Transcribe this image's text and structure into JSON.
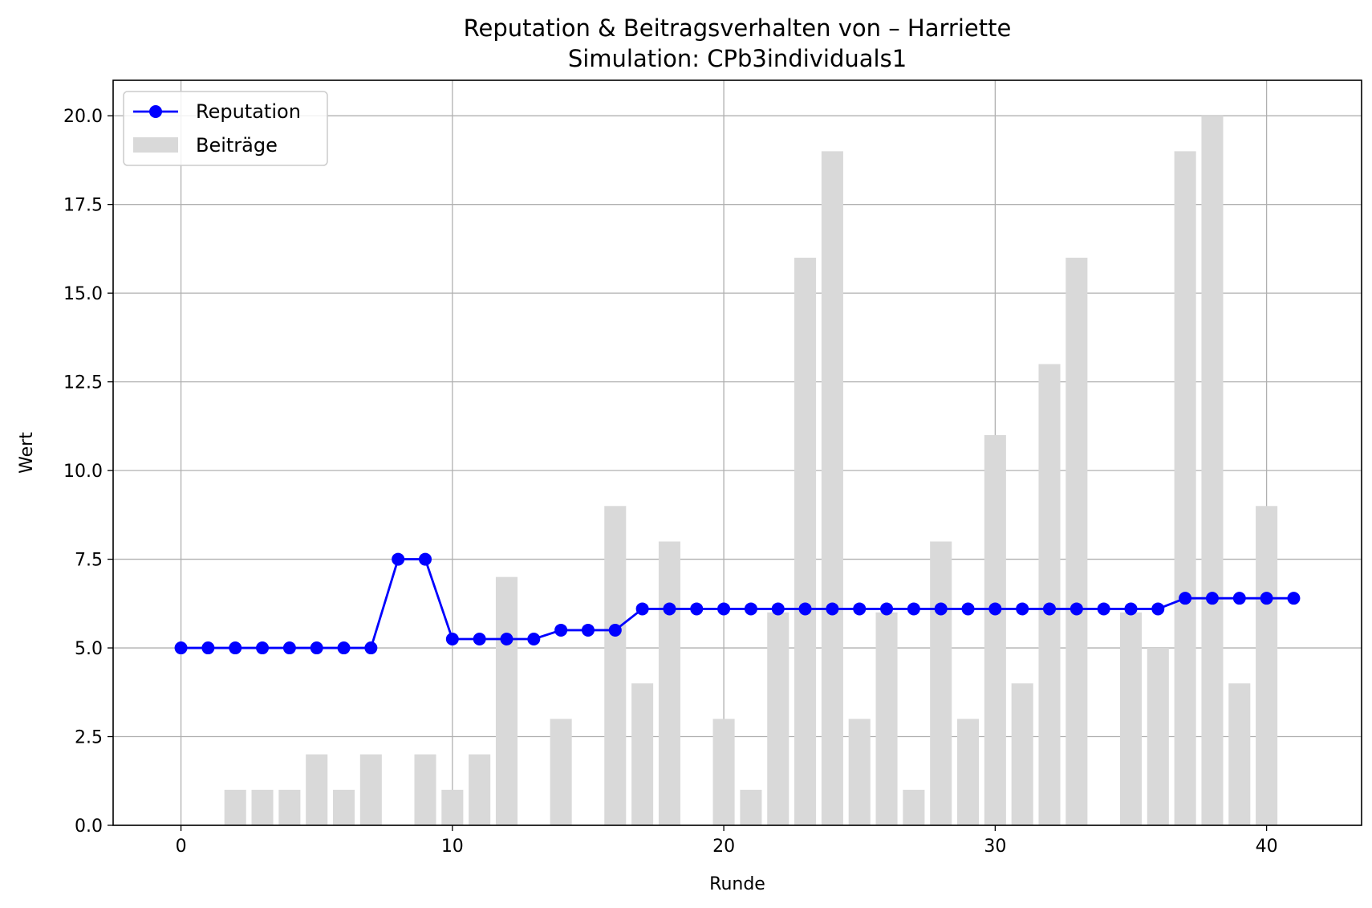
{
  "chart_data": {
    "type": "bar+line",
    "title": "Reputation & Beitragsverhalten von – Harriette",
    "subtitle": "Simulation: CPb3individuals1",
    "xlabel": "Runde",
    "ylabel": "Wert",
    "xlim": [
      -2.5,
      43.5
    ],
    "ylim": [
      0,
      21
    ],
    "xticks": [
      0,
      10,
      20,
      30,
      40
    ],
    "yticks": [
      0.0,
      2.5,
      5.0,
      7.5,
      10.0,
      12.5,
      15.0,
      17.5,
      20.0
    ],
    "xtick_labels": [
      "0",
      "10",
      "20",
      "30",
      "40"
    ],
    "ytick_labels": [
      "0.0",
      "2.5",
      "5.0",
      "7.5",
      "10.0",
      "12.5",
      "15.0",
      "17.5",
      "20.0"
    ],
    "grid": true,
    "legend_position": "upper left",
    "x": [
      0,
      1,
      2,
      3,
      4,
      5,
      6,
      7,
      8,
      9,
      10,
      11,
      12,
      13,
      14,
      15,
      16,
      17,
      18,
      19,
      20,
      21,
      22,
      23,
      24,
      25,
      26,
      27,
      28,
      29,
      30,
      31,
      32,
      33,
      34,
      35,
      36,
      37,
      38,
      39,
      40,
      41
    ],
    "series": [
      {
        "name": "Reputation",
        "kind": "line",
        "color": "#0000ff",
        "marker": "circle",
        "values": [
          5,
          5,
          5,
          5,
          5,
          5,
          5,
          5,
          7.5,
          7.5,
          5.25,
          5.25,
          5.25,
          5.25,
          5.5,
          5.5,
          5.5,
          6.1,
          6.1,
          6.1,
          6.1,
          6.1,
          6.1,
          6.1,
          6.1,
          6.1,
          6.1,
          6.1,
          6.1,
          6.1,
          6.1,
          6.1,
          6.1,
          6.1,
          6.1,
          6.1,
          6.1,
          6.4,
          6.4,
          6.4,
          6.4,
          6.4
        ]
      },
      {
        "name": "Beiträge",
        "kind": "bar",
        "color": "#d9d9d9",
        "values": [
          0,
          0,
          1,
          1,
          1,
          2,
          1,
          2,
          0,
          2,
          1,
          2,
          7,
          0,
          3,
          0,
          9,
          4,
          8,
          0,
          3,
          1,
          6,
          16,
          19,
          3,
          6,
          1,
          8,
          3,
          11,
          4,
          13,
          16,
          0,
          6,
          5,
          19,
          20,
          4,
          9,
          0
        ]
      }
    ]
  }
}
